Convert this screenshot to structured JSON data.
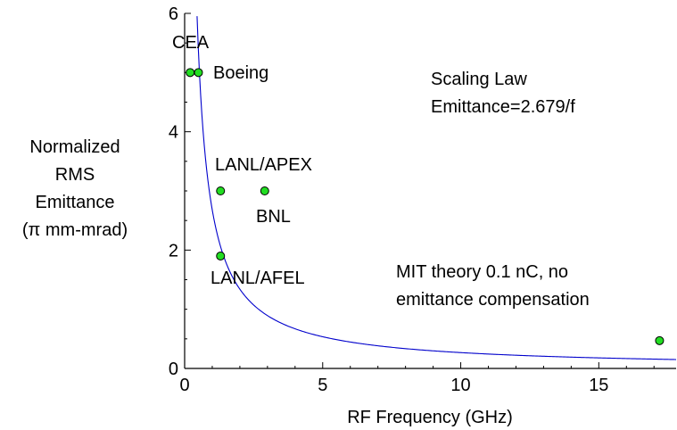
{
  "chart_data": {
    "type": "scatter",
    "title": "",
    "xlabel": "RF Frequency (GHz)",
    "ylabel_lines": [
      "Normalized",
      "RMS",
      "Emittance",
      "(π mm-mrad)"
    ],
    "xlim": [
      0,
      17.8
    ],
    "ylim": [
      0,
      6
    ],
    "xticks": [
      0,
      5,
      10,
      15
    ],
    "yticks": [
      0,
      2,
      4,
      6
    ],
    "grid": false,
    "point_color": "#22dd22",
    "curve_color": "#0000cc",
    "points": [
      {
        "label": "CEA",
        "x": 0.2,
        "y": 5.0
      },
      {
        "label": "Boeing",
        "x": 0.5,
        "y": 5.0
      },
      {
        "label": "LANL/APEX",
        "x": 1.3,
        "y": 3.0
      },
      {
        "label": "BNL",
        "x": 2.9,
        "y": 3.0
      },
      {
        "label": "LANL/AFEL",
        "x": 1.3,
        "y": 1.9
      },
      {
        "label": "",
        "x": 17.2,
        "y": 0.47
      }
    ],
    "curve": {
      "coefficient": 2.679,
      "x_start": 0.45,
      "x_end": 17.8
    },
    "annotations": [
      {
        "lines": [
          "Scaling Law",
          "Emittance=2.679/f"
        ]
      },
      {
        "lines": [
          "MIT theory 0.1 nC, no",
          "emittance compensation"
        ]
      }
    ]
  }
}
